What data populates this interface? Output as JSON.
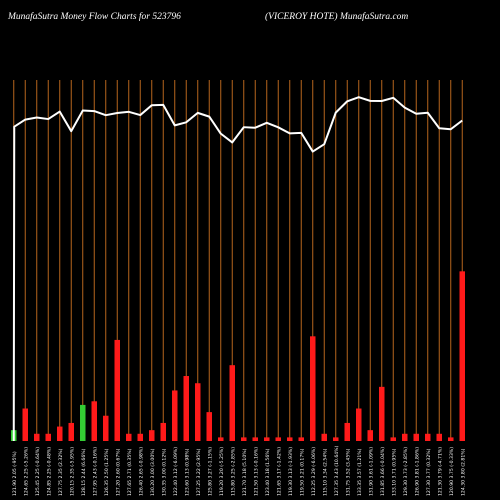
{
  "header": {
    "left_title": "MunafaSutra  Money Flow  Charts for 523796",
    "right_title": "(VICEROY HOTE) MunafaSutra.com"
  },
  "colors": {
    "background": "#000000",
    "grid_line": "#b5651d",
    "price_line": "#ffffff",
    "bar_red": "#ff1a1a",
    "bar_green": "#33cc33",
    "label": "#ffffff"
  },
  "chart_data": {
    "type": "bar",
    "grid": true,
    "categories": [
      "121.90 2.05 (-95%)",
      "124.65 2.25 (-5.26%)",
      "125.45 2.25 (-0.64%)",
      "124.85 2.25 (-0.48%)",
      "127.75 2.35 (2.32%)",
      "120.15 2.35 (-5.95%)",
      "128.15 2.44 (6.66%)",
      "127.95 2.43 (-0.16%)",
      "126.35 2.50 (1.25%)",
      "127.20 2.60 (0.67%)",
      "127.65 2.71 (0.35%)",
      "126.40 2.65 (-0.98%)",
      "130.20 3.00 (3.00%)",
      "130.35 3.00 (0.12%)",
      "122.40 3.12 (-6.09%)",
      "123.60 3.13 (0.98%)",
      "127.25 3.22 (2.95%)",
      "125.80 3.27 (-1.15%)",
      "119.20 3.20 (-5.25%)",
      "115.80 3.25 (-2.85%)",
      "121.70 3.18 (5.10%)",
      "121.50 3.13 (-0.16%)",
      "123.40 3.18 (1.56%)",
      "121.65 3.17 (-1.42%)",
      "119.30 3.13 (-1.93%)",
      "119.50 3.21 (0.17%)",
      "112.25 3.29 (-6.06%)",
      "115.10 3.34 (2.54%)",
      "127.35 3.43 (10.64%)",
      "131.75 3.52 (3.45%)",
      "133.35 3.57 (1.21%)",
      "131.90 3.61 (-1.09%)",
      "131.85 3.66 (-0.04%)",
      "133.10 3.71 (0.95%)",
      "129.30 3.73 (-2.85%)",
      "126.90 3.81 (-1.86%)",
      "127.30 3.77 (0.32%)",
      "121.30 3.79 (-4.71%)",
      "120.90 3.75 (-0.33%)",
      "124.30 3.80 (2.81%)"
    ],
    "price_line": [
      121.9,
      124.65,
      125.45,
      124.85,
      127.75,
      120.15,
      128.15,
      127.95,
      126.35,
      127.2,
      127.65,
      126.4,
      130.2,
      130.35,
      122.4,
      123.6,
      127.25,
      125.8,
      119.2,
      115.8,
      121.7,
      121.5,
      123.4,
      121.65,
      119.3,
      119.5,
      112.25,
      115.1,
      127.35,
      131.75,
      133.35,
      131.9,
      131.85,
      133.1,
      129.3,
      126.9,
      127.3,
      121.3,
      120.9,
      124.3
    ],
    "price_line_start": 0,
    "series": [
      {
        "values": [
          3,
          9,
          2,
          2,
          4,
          5,
          10,
          11,
          7,
          28,
          2,
          2,
          3,
          5,
          14,
          18,
          16,
          8,
          1,
          21,
          1,
          1,
          1,
          1,
          1,
          1,
          29,
          2,
          1,
          5,
          9,
          3,
          15,
          1,
          2,
          2,
          2,
          2,
          1,
          47
        ],
        "directions": [
          "up",
          "down",
          "down",
          "down",
          "down",
          "down",
          "up",
          "down",
          "down",
          "down",
          "down",
          "down",
          "down",
          "down",
          "down",
          "down",
          "down",
          "down",
          "down",
          "down",
          "down",
          "down",
          "down",
          "down",
          "down",
          "down",
          "down",
          "down",
          "down",
          "down",
          "down",
          "down",
          "down",
          "down",
          "down",
          "down",
          "down",
          "down",
          "down",
          "down"
        ]
      }
    ],
    "ylim_bars": [
      0,
      100
    ],
    "ylim_price": [
      0,
      140
    ]
  }
}
